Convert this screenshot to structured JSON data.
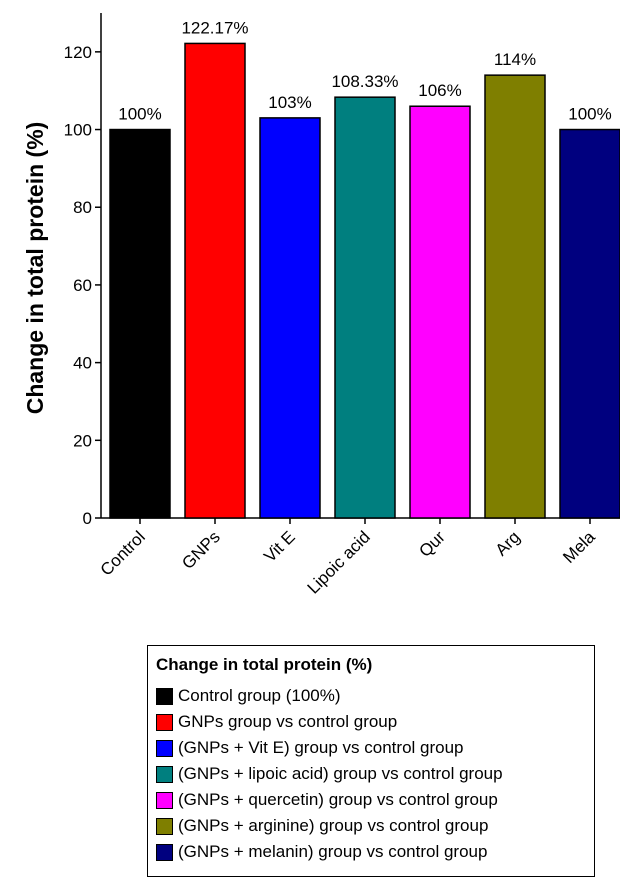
{
  "chart_data": {
    "type": "bar",
    "categories": [
      "Control",
      "GNPs",
      "Vit E",
      "Lipoic acid",
      "Qur",
      "Arg",
      "Mela"
    ],
    "values": [
      100,
      122.17,
      103,
      108.33,
      106,
      114,
      100
    ],
    "data_labels": [
      "100%",
      "122.17%",
      "103%",
      "108.33%",
      "106%",
      "114%",
      "100%"
    ],
    "colors": [
      "#000000",
      "#ff0000",
      "#0000ff",
      "#007f7f",
      "#ff00ff",
      "#7f7f00",
      "#00007f"
    ],
    "ylabel": "Change in total protein (%)",
    "xlabel": "",
    "ylim": [
      0,
      130
    ],
    "yticks": [
      0,
      20,
      40,
      60,
      80,
      100,
      120
    ],
    "grid": false,
    "legend": {
      "title": "Change in total protein (%)",
      "placement": "bottom",
      "entries": [
        "Control group (100%)",
        "GNPs group vs control group",
        "(GNPs + Vit E) group vs control group",
        "(GNPs + lipoic acid) group vs control group",
        "(GNPs + quercetin) group vs control group",
        "(GNPs + arginine) group vs control group",
        "(GNPs + melanin) group vs control group"
      ]
    }
  }
}
